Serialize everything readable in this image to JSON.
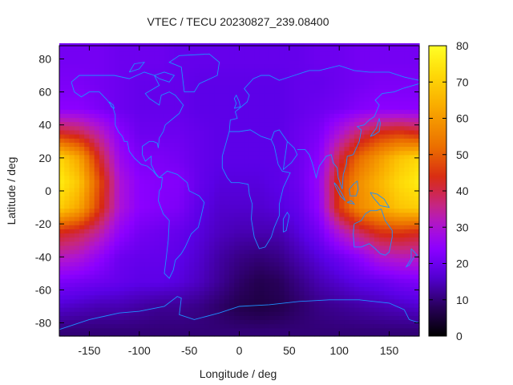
{
  "chart_data": {
    "type": "heatmap",
    "title": "VTEC / TECU 20230827_239.08400",
    "xlabel": "Longitude / deg",
    "ylabel": "Latitude / deg",
    "xlim": [
      -180,
      180
    ],
    "ylim": [
      -88,
      88
    ],
    "x_ticks": [
      -150,
      -100,
      -50,
      0,
      50,
      100,
      150
    ],
    "y_ticks": [
      -80,
      -60,
      -40,
      -20,
      0,
      20,
      40,
      60,
      80
    ],
    "colorbar": {
      "min": 0,
      "max": 80,
      "ticks": [
        0,
        10,
        20,
        30,
        40,
        50,
        60,
        70,
        80
      ],
      "colormap": "black-purple-red-yellow"
    },
    "grid": false,
    "overlay": "coastlines",
    "colors": {
      "coastline": "#1e90ff",
      "frame": "#000000"
    },
    "grid_lon": [
      -180,
      -160,
      -140,
      -120,
      -100,
      -80,
      -60,
      -40,
      -20,
      0,
      20,
      40,
      60,
      80,
      100,
      120,
      140,
      160,
      180
    ],
    "grid_lat": [
      -85,
      -70,
      -55,
      -40,
      -25,
      -10,
      5,
      20,
      35,
      50,
      65,
      80
    ],
    "vtec": [
      [
        10,
        10,
        10,
        10,
        10,
        10,
        10,
        10,
        10,
        10,
        10,
        10,
        10,
        10,
        10,
        10,
        10,
        10,
        10
      ],
      [
        16,
        15,
        14,
        14,
        13,
        12,
        12,
        11,
        9,
        7,
        6,
        7,
        9,
        11,
        12,
        13,
        14,
        15,
        16
      ],
      [
        22,
        21,
        20,
        19,
        18,
        18,
        17,
        15,
        12,
        9,
        7,
        8,
        11,
        14,
        16,
        18,
        19,
        21,
        22
      ],
      [
        32,
        30,
        25,
        20,
        19,
        19,
        18,
        16,
        13,
        11,
        10,
        11,
        14,
        17,
        20,
        24,
        30,
        32,
        32
      ],
      [
        43,
        40,
        34,
        25,
        21,
        20,
        19,
        17,
        15,
        14,
        14,
        14,
        17,
        21,
        30,
        38,
        44,
        45,
        43
      ],
      [
        70,
        62,
        45,
        30,
        24,
        23,
        22,
        18,
        16,
        16,
        16,
        17,
        19,
        25,
        45,
        57,
        62,
        68,
        70
      ],
      [
        76,
        68,
        48,
        30,
        24,
        23,
        23,
        19,
        17,
        17,
        17,
        18,
        20,
        26,
        46,
        58,
        65,
        72,
        76
      ],
      [
        72,
        62,
        42,
        27,
        22,
        22,
        21,
        19,
        18,
        18,
        18,
        18,
        20,
        24,
        40,
        52,
        60,
        68,
        72
      ],
      [
        43,
        40,
        33,
        24,
        20,
        20,
        20,
        19,
        18,
        18,
        18,
        18,
        20,
        22,
        30,
        38,
        44,
        46,
        43
      ],
      [
        24,
        24,
        22,
        20,
        19,
        19,
        19,
        18,
        18,
        18,
        18,
        18,
        19,
        20,
        21,
        23,
        24,
        24,
        24
      ],
      [
        22,
        22,
        21,
        20,
        19,
        19,
        19,
        18,
        18,
        18,
        18,
        18,
        19,
        19,
        20,
        21,
        22,
        22,
        22
      ],
      [
        21,
        21,
        21,
        20,
        20,
        20,
        19,
        19,
        19,
        19,
        19,
        19,
        19,
        20,
        20,
        21,
        21,
        21,
        21
      ]
    ]
  }
}
